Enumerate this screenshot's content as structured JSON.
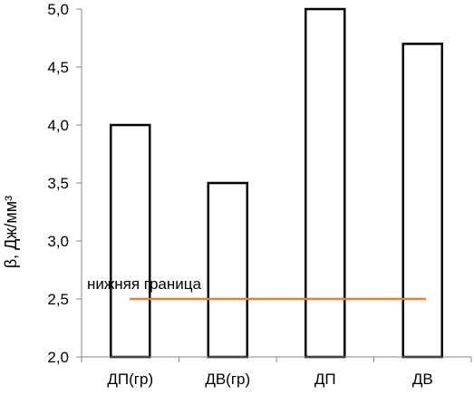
{
  "chart_data": {
    "type": "bar",
    "categories": [
      "ДП(гр)",
      "ДВ(гр)",
      "ДП",
      "ДВ"
    ],
    "values": [
      4.0,
      3.5,
      5.0,
      4.7
    ],
    "title": "",
    "xlabel": "",
    "ylabel": "β, Дж/мм³",
    "ylim": [
      2.0,
      5.0
    ],
    "yticks": [
      "2,0",
      "2,5",
      "3,0",
      "3,5",
      "4,0",
      "4,5",
      "5,0"
    ],
    "ytick_values": [
      2.0,
      2.5,
      3.0,
      3.5,
      4.0,
      4.5,
      5.0
    ],
    "bar_fill": "#ffffff",
    "bar_stroke": "#000000",
    "grid": false,
    "legend": "none",
    "reference_line": {
      "label": "нижняя граница",
      "value": 2.5,
      "color": "#ED7D31"
    }
  }
}
